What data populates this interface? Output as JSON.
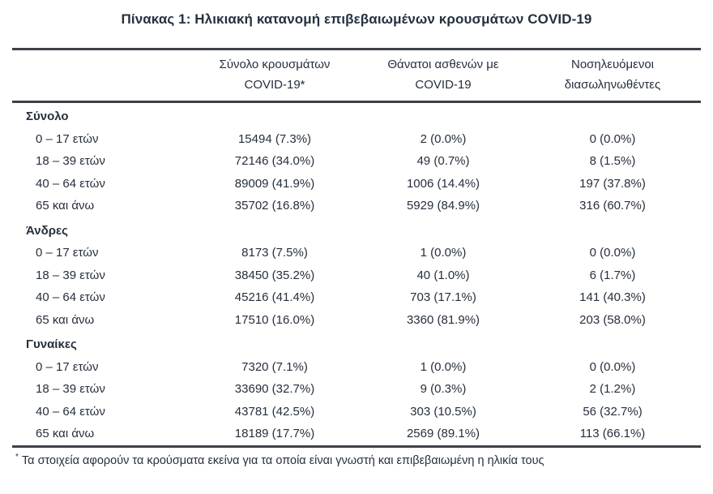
{
  "page": {
    "title": "Πίνακας 1: Ηλικιακή κατανομή επιβεβαιωμένων κρουσμάτων COVID-19"
  },
  "colors": {
    "text": "#262f3c",
    "rule": "#3d4147",
    "background": "#ffffff"
  },
  "table": {
    "columns": [
      {
        "id": "group",
        "line1": "",
        "line2": ""
      },
      {
        "id": "cases",
        "line1": "Σύνολο κρουσμάτων",
        "line2": "COVID-19*"
      },
      {
        "id": "deaths",
        "line1": "Θάνατοι ασθενών με",
        "line2": "COVID-19"
      },
      {
        "id": "intubated",
        "line1": "Νοσηλευόμενοι",
        "line2": "διασωληνωθέντες"
      }
    ],
    "sections": [
      {
        "label": "Σύνολο",
        "rows": [
          {
            "age": "0 – 17 ετών",
            "cases": "15494 (7.3%)",
            "deaths": "2 (0.0%)",
            "intubated": "0 (0.0%)"
          },
          {
            "age": "18 – 39 ετών",
            "cases": "72146 (34.0%)",
            "deaths": "49 (0.7%)",
            "intubated": "8 (1.5%)"
          },
          {
            "age": "40 – 64 ετών",
            "cases": "89009 (41.9%)",
            "deaths": "1006 (14.4%)",
            "intubated": "197 (37.8%)"
          },
          {
            "age": "65 και άνω",
            "cases": "35702 (16.8%)",
            "deaths": "5929 (84.9%)",
            "intubated": "316 (60.7%)"
          }
        ]
      },
      {
        "label": "Άνδρες",
        "rows": [
          {
            "age": "0 – 17 ετών",
            "cases": "8173 (7.5%)",
            "deaths": "1 (0.0%)",
            "intubated": "0 (0.0%)"
          },
          {
            "age": "18 – 39 ετών",
            "cases": "38450 (35.2%)",
            "deaths": "40 (1.0%)",
            "intubated": "6 (1.7%)"
          },
          {
            "age": "40 – 64 ετών",
            "cases": "45216 (41.4%)",
            "deaths": "703 (17.1%)",
            "intubated": "141 (40.3%)"
          },
          {
            "age": "65 και άνω",
            "cases": "17510 (16.0%)",
            "deaths": "3360 (81.9%)",
            "intubated": "203 (58.0%)"
          }
        ]
      },
      {
        "label": "Γυναίκες",
        "rows": [
          {
            "age": "0 – 17 ετών",
            "cases": "7320 (7.1%)",
            "deaths": "1 (0.0%)",
            "intubated": "0 (0.0%)"
          },
          {
            "age": "18 – 39 ετών",
            "cases": "33690 (32.7%)",
            "deaths": "9 (0.3%)",
            "intubated": "2 (1.2%)"
          },
          {
            "age": "40 – 64 ετών",
            "cases": "43781 (42.5%)",
            "deaths": "303 (10.5%)",
            "intubated": "56 (32.7%)"
          },
          {
            "age": "65 και άνω",
            "cases": "18189 (17.7%)",
            "deaths": "2569 (89.1%)",
            "intubated": "113 (66.1%)"
          }
        ]
      }
    ]
  },
  "footnote": {
    "marker": "*",
    "text": "Τα στοιχεία αφορούν τα κρούσματα εκείνα για τα οποία είναι γνωστή και επιβεβαιωμένη η ηλικία τους"
  }
}
